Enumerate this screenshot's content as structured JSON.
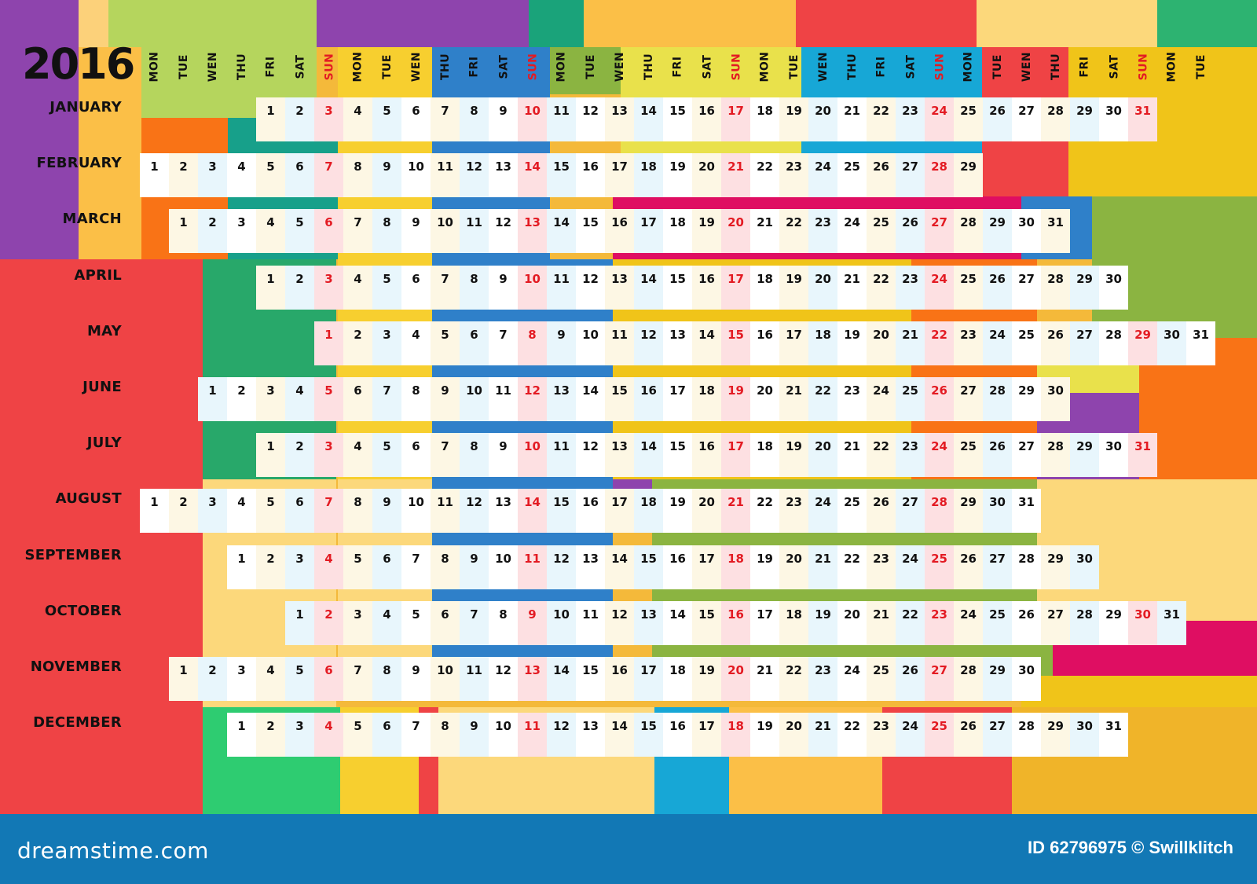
{
  "calendar": {
    "year": "2016",
    "day_headers": [
      "MON",
      "TUE",
      "WEN",
      "THU",
      "FRI",
      "SAT",
      "SUN",
      "MON",
      "TUE",
      "WEN",
      "THU",
      "FRI",
      "SAT",
      "SUN",
      "MON",
      "TUE",
      "WEN",
      "THU",
      "FRI",
      "SAT",
      "SUN",
      "MON",
      "TUE",
      "WEN",
      "THU",
      "FRI",
      "SAT",
      "SUN",
      "MON",
      "TUE",
      "WEN",
      "THU",
      "FRI",
      "SAT",
      "SUN",
      "MON",
      "TUE"
    ],
    "months": [
      {
        "name": "JANUARY",
        "offset": 4,
        "days": 31
      },
      {
        "name": "FEBRUARY",
        "offset": 0,
        "days": 29
      },
      {
        "name": "MARCH",
        "offset": 1,
        "days": 31
      },
      {
        "name": "APRIL",
        "offset": 4,
        "days": 30
      },
      {
        "name": "MAY",
        "offset": 6,
        "days": 31
      },
      {
        "name": "JUNE",
        "offset": 2,
        "days": 30
      },
      {
        "name": "JULY",
        "offset": 4,
        "days": 31
      },
      {
        "name": "AUGUST",
        "offset": 0,
        "days": 31
      },
      {
        "name": "SEPTEMBER",
        "offset": 3,
        "days": 30
      },
      {
        "name": "OCTOBER",
        "offset": 5,
        "days": 31
      },
      {
        "name": "NOVEMBER",
        "offset": 1,
        "days": 30
      },
      {
        "name": "DECEMBER",
        "offset": 3,
        "days": 31
      }
    ],
    "sunday_color": "#e31b23"
  },
  "footer": {
    "site": "dreamstime.com",
    "credit": "ID 62796975 © Swillklitch",
    "bar_color": "#1278b5"
  }
}
